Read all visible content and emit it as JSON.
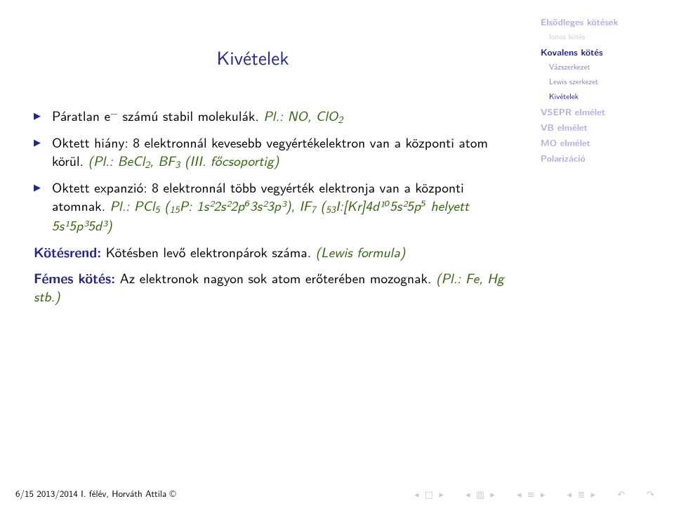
{
  "title": "Kivételek",
  "bullets": {
    "b1_pre": "Páratlan e",
    "b1_post": " számú stabil molekulák. ",
    "b1_eg_label": "Pl.: NO, ClO",
    "b1_eg_sub": "2",
    "b2_pre": "Oktett hiány: 8 elektronnál kevesebb vegyértékelektron van a központi atom körül. ",
    "b2_eg1": "(Pl.: BeCl",
    "b2_eg1_sub": "2",
    "b2_eg2": ", BF",
    "b2_eg2_sub": "3",
    "b2_eg3": " (III. főcsoportig)",
    "b3_pre": "Oktett expanzió: 8 elektronnál több vegyérték elektronja van a központi atomnak. ",
    "b3_eg_label": "Pl.: PCl",
    "b3_pcl_sub": "5",
    "b3_p_open": " (",
    "b3_p15": "15",
    "b3_p_elem": "P: 1s",
    "b3_cfg": "²2s²2p⁶3s²3p³), IF",
    "b3_if_sub": "7",
    "b3_i_open": " (",
    "b3_i53": "53",
    "b3_i_cfg": "I:[Kr]4d¹⁰5s²5p⁵ helyett 5s¹5p³5d³)"
  },
  "extra": {
    "kotesrend_label": "Kötésrend:",
    "kotesrend_text": " Kötésben levő elektronpárok száma. ",
    "kotesrend_eg": "(Lewis formula)",
    "femes_label": "Fémes kötés:",
    "femes_text": " Az elektronok nagyon sok atom erőterében mozognak. ",
    "femes_eg": "(Pl.: Fe, Hg stb.)"
  },
  "sidebar": {
    "items": [
      {
        "label": "Elsődleges kötések",
        "cls": "lvl1"
      },
      {
        "label": "Ionos kötés",
        "cls": "lvl2"
      },
      {
        "label": "Kovalens kötés",
        "cls": "lvl1 active"
      },
      {
        "label": "Vázszerkezet",
        "cls": "lvl2 active"
      },
      {
        "label": "Lewis szerkezet",
        "cls": "lvl2 active"
      },
      {
        "label": "Kivételek",
        "cls": "lvl2 current"
      },
      {
        "label": "VSEPR elmélet",
        "cls": "lvl1"
      },
      {
        "label": "VB elmélet",
        "cls": "lvl1"
      },
      {
        "label": "MO elmélet",
        "cls": "lvl1"
      },
      {
        "label": "Polarizáció",
        "cls": "lvl1"
      }
    ]
  },
  "footer": {
    "page": "6/15",
    "rest": "   2013/2014 I. félév, Horváth Attila ©"
  },
  "colors": {
    "title": "#272781",
    "example": "#346012",
    "sidebar_faded": "#b1b1d9",
    "sidebar_active": "#272781",
    "background": "#ffffff"
  }
}
